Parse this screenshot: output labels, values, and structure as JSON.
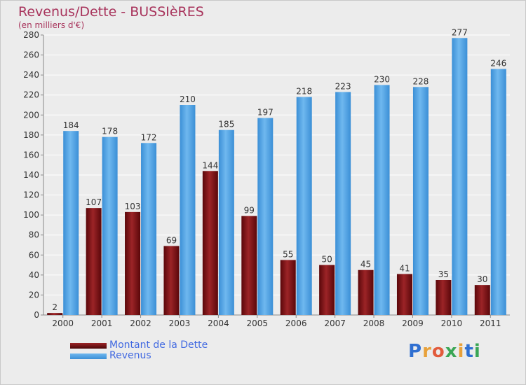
{
  "chart_data": {
    "type": "bar",
    "title": "Revenus/Dette - BUSSIèRES",
    "subtitle": "(en milliers d'€)",
    "categories": [
      "2000",
      "2001",
      "2002",
      "2003",
      "2004",
      "2005",
      "2006",
      "2007",
      "2008",
      "2009",
      "2010",
      "2011"
    ],
    "series": [
      {
        "name": "Montant de la Dette",
        "color": "#7a0e10",
        "values": [
          2,
          107,
          103,
          69,
          144,
          99,
          55,
          50,
          45,
          41,
          35,
          30
        ]
      },
      {
        "name": "Revenus",
        "color": "#4aa3e6",
        "values": [
          184,
          178,
          172,
          210,
          185,
          197,
          218,
          223,
          230,
          228,
          277,
          246
        ]
      }
    ],
    "ylim": [
      0,
      280
    ],
    "yticks": [
      0,
      20,
      40,
      60,
      80,
      100,
      120,
      140,
      160,
      180,
      200,
      220,
      240,
      260,
      280
    ],
    "grid": true,
    "legend_position": "bottom-left"
  },
  "logo": {
    "letters": [
      "P",
      "r",
      "o",
      "x",
      "i",
      "t",
      "i"
    ],
    "colors": [
      "#2f6fd1",
      "#e8a13a",
      "#e25b3c",
      "#3aa655",
      "#e8a13a",
      "#2f6fd1",
      "#3aa655"
    ]
  }
}
